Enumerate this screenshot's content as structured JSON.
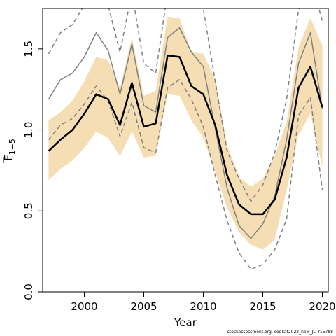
{
  "chart_data": {
    "type": "line",
    "xlabel": "Year",
    "ylabel_main": "F",
    "ylabel_sub": "1−5",
    "xlim": [
      1996.5,
      2020.5
    ],
    "ylim": [
      0.0,
      1.75
    ],
    "x_ticks": [
      2000,
      2005,
      2010,
      2015,
      2020
    ],
    "y_ticks": [
      "0.0",
      "0.5",
      "1.0",
      "1.5"
    ],
    "x": [
      1997,
      1998,
      1999,
      2000,
      2001,
      2002,
      2003,
      2004,
      2005,
      2006,
      2007,
      2008,
      2009,
      2010,
      2011,
      2012,
      2013,
      2014,
      2015,
      2016,
      2017,
      2018,
      2019,
      2020
    ],
    "series": [
      {
        "role": "band-lower",
        "color": "#f5deb3",
        "values": [
          0.69,
          0.76,
          0.81,
          0.89,
          0.99,
          0.95,
          0.84,
          0.99,
          0.83,
          0.84,
          1.22,
          1.21,
          1.06,
          0.95,
          0.74,
          0.52,
          0.37,
          0.29,
          0.26,
          0.32,
          0.63,
          0.97,
          1.1,
          0.77
        ]
      },
      {
        "role": "band-upper",
        "color": "#f5deb3",
        "values": [
          1.06,
          1.11,
          1.18,
          1.3,
          1.45,
          1.43,
          1.26,
          1.57,
          1.21,
          1.24,
          1.7,
          1.69,
          1.48,
          1.47,
          1.31,
          0.91,
          0.71,
          0.65,
          0.7,
          0.84,
          1.05,
          1.51,
          1.69,
          1.52
        ]
      },
      {
        "role": "estimate",
        "color": "#000000",
        "values": [
          0.87,
          0.94,
          1.0,
          1.1,
          1.22,
          1.19,
          1.03,
          1.29,
          1.02,
          1.04,
          1.46,
          1.45,
          1.27,
          1.22,
          1.03,
          0.72,
          0.54,
          0.48,
          0.48,
          0.57,
          0.83,
          1.26,
          1.39,
          1.14
        ]
      },
      {
        "role": "alternative",
        "color": "#808080",
        "values": [
          1.19,
          1.31,
          1.35,
          1.45,
          1.6,
          1.49,
          1.22,
          1.53,
          1.15,
          1.11,
          1.57,
          1.63,
          1.48,
          1.39,
          1.01,
          0.64,
          0.41,
          0.33,
          0.42,
          0.59,
          0.94,
          1.41,
          1.6,
          1.13
        ]
      },
      {
        "role": "alternative-upper",
        "color": "#808080",
        "dashed": true,
        "values": [
          1.47,
          1.6,
          1.65,
          1.77,
          1.95,
          1.77,
          1.48,
          1.85,
          1.41,
          1.35,
          1.85,
          1.86,
          1.77,
          1.75,
          1.3,
          0.87,
          0.7,
          0.56,
          0.66,
          0.86,
          1.19,
          1.74,
          1.95,
          1.67
        ]
      },
      {
        "role": "alternative-lower",
        "color": "#808080",
        "dashed": true,
        "values": [
          0.94,
          1.03,
          1.07,
          1.16,
          1.27,
          1.18,
          0.96,
          1.17,
          0.89,
          0.86,
          1.26,
          1.31,
          1.19,
          1.02,
          0.72,
          0.44,
          0.24,
          0.14,
          0.17,
          0.26,
          0.45,
          1.09,
          1.2,
          0.63
        ]
      }
    ]
  },
  "footer": {
    "source": "stockassessment.org, codkat2022_new_JL, r15788"
  }
}
